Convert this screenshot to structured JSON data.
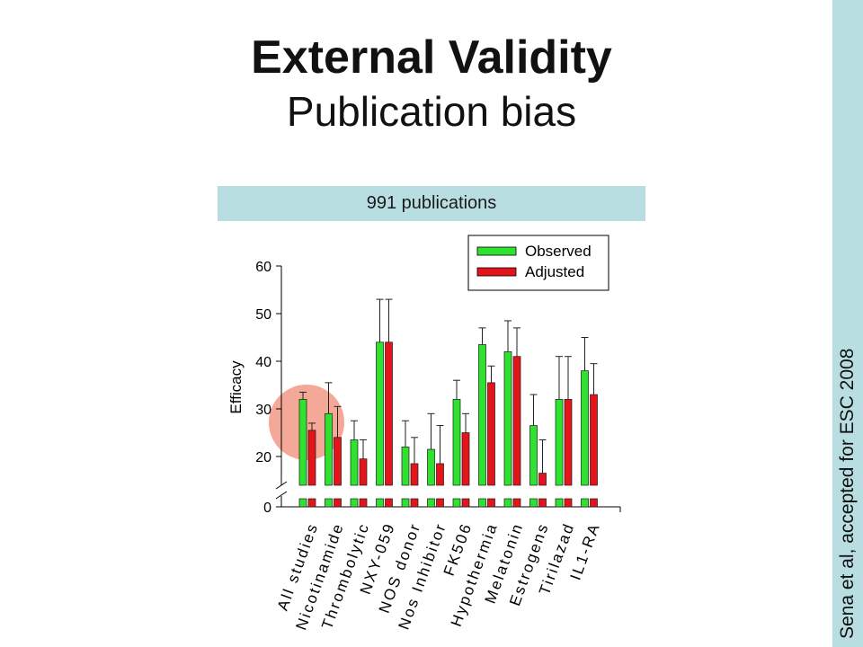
{
  "slide": {
    "title": "External Validity",
    "subtitle": "Publication bias"
  },
  "banner": {
    "text": "991 publications"
  },
  "sidebar": {
    "citation": "Sena et al, accepted for ESC 2008"
  },
  "colors": {
    "banner_background": "#b8dee2",
    "sidebar_background": "#b8dee2",
    "highlight": "#f4a897"
  },
  "chart_data": {
    "type": "bar",
    "categories": [
      "All studies",
      "Nicotinamide",
      "Thrombolytic",
      "NXY-059",
      "NOS donor",
      "Nos Inhibitor",
      "FK506",
      "Hypothermia",
      "Melatonin",
      "Estrogens",
      "Tirilazad",
      "IL1-RA"
    ],
    "series": [
      {
        "name": "Observed",
        "color": "#2fe22f",
        "values": [
          32,
          29,
          23.5,
          44,
          22,
          21.5,
          32,
          43.5,
          42,
          26.5,
          32,
          38
        ],
        "error_upper": [
          1.5,
          6.5,
          4,
          9,
          5.5,
          7.5,
          4,
          3.5,
          6.5,
          6.5,
          9,
          7
        ]
      },
      {
        "name": "Adjusted",
        "color": "#e3151b",
        "values": [
          25.5,
          24,
          19.5,
          44,
          18.5,
          18.5,
          25,
          35.5,
          41,
          16.5,
          32,
          33
        ],
        "error_upper": [
          1.5,
          6.5,
          4,
          9,
          5.5,
          8,
          4,
          3.5,
          6,
          7,
          9,
          6.5
        ]
      }
    ],
    "ylabel": "Efficacy",
    "yticks": [
      0,
      20,
      30,
      40,
      50,
      60
    ],
    "ylim": [
      0,
      60
    ],
    "y_axis_broken": true,
    "grid": false,
    "legend": "top-right",
    "highlighted_category": "All studies"
  }
}
